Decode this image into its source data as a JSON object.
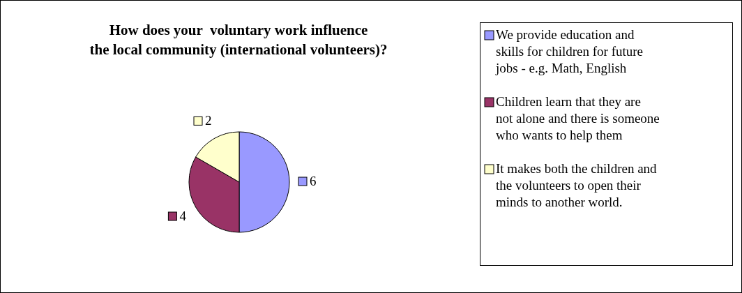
{
  "chart_data": {
    "type": "pie",
    "title": "How does your  voluntary work influence\nthe local community (international volunteers)?",
    "categories": [
      "We provide education and skills for children for future jobs - e.g. Math, English",
      "Children learn that they are not alone and there is someone who wants to help them",
      "It makes both the children and the volunteers to open their minds to another world."
    ],
    "values": [
      6,
      4,
      2
    ],
    "colors": [
      "#9999ff",
      "#993366",
      "#ffffcc"
    ],
    "data_labels": true,
    "legend": "right"
  }
}
